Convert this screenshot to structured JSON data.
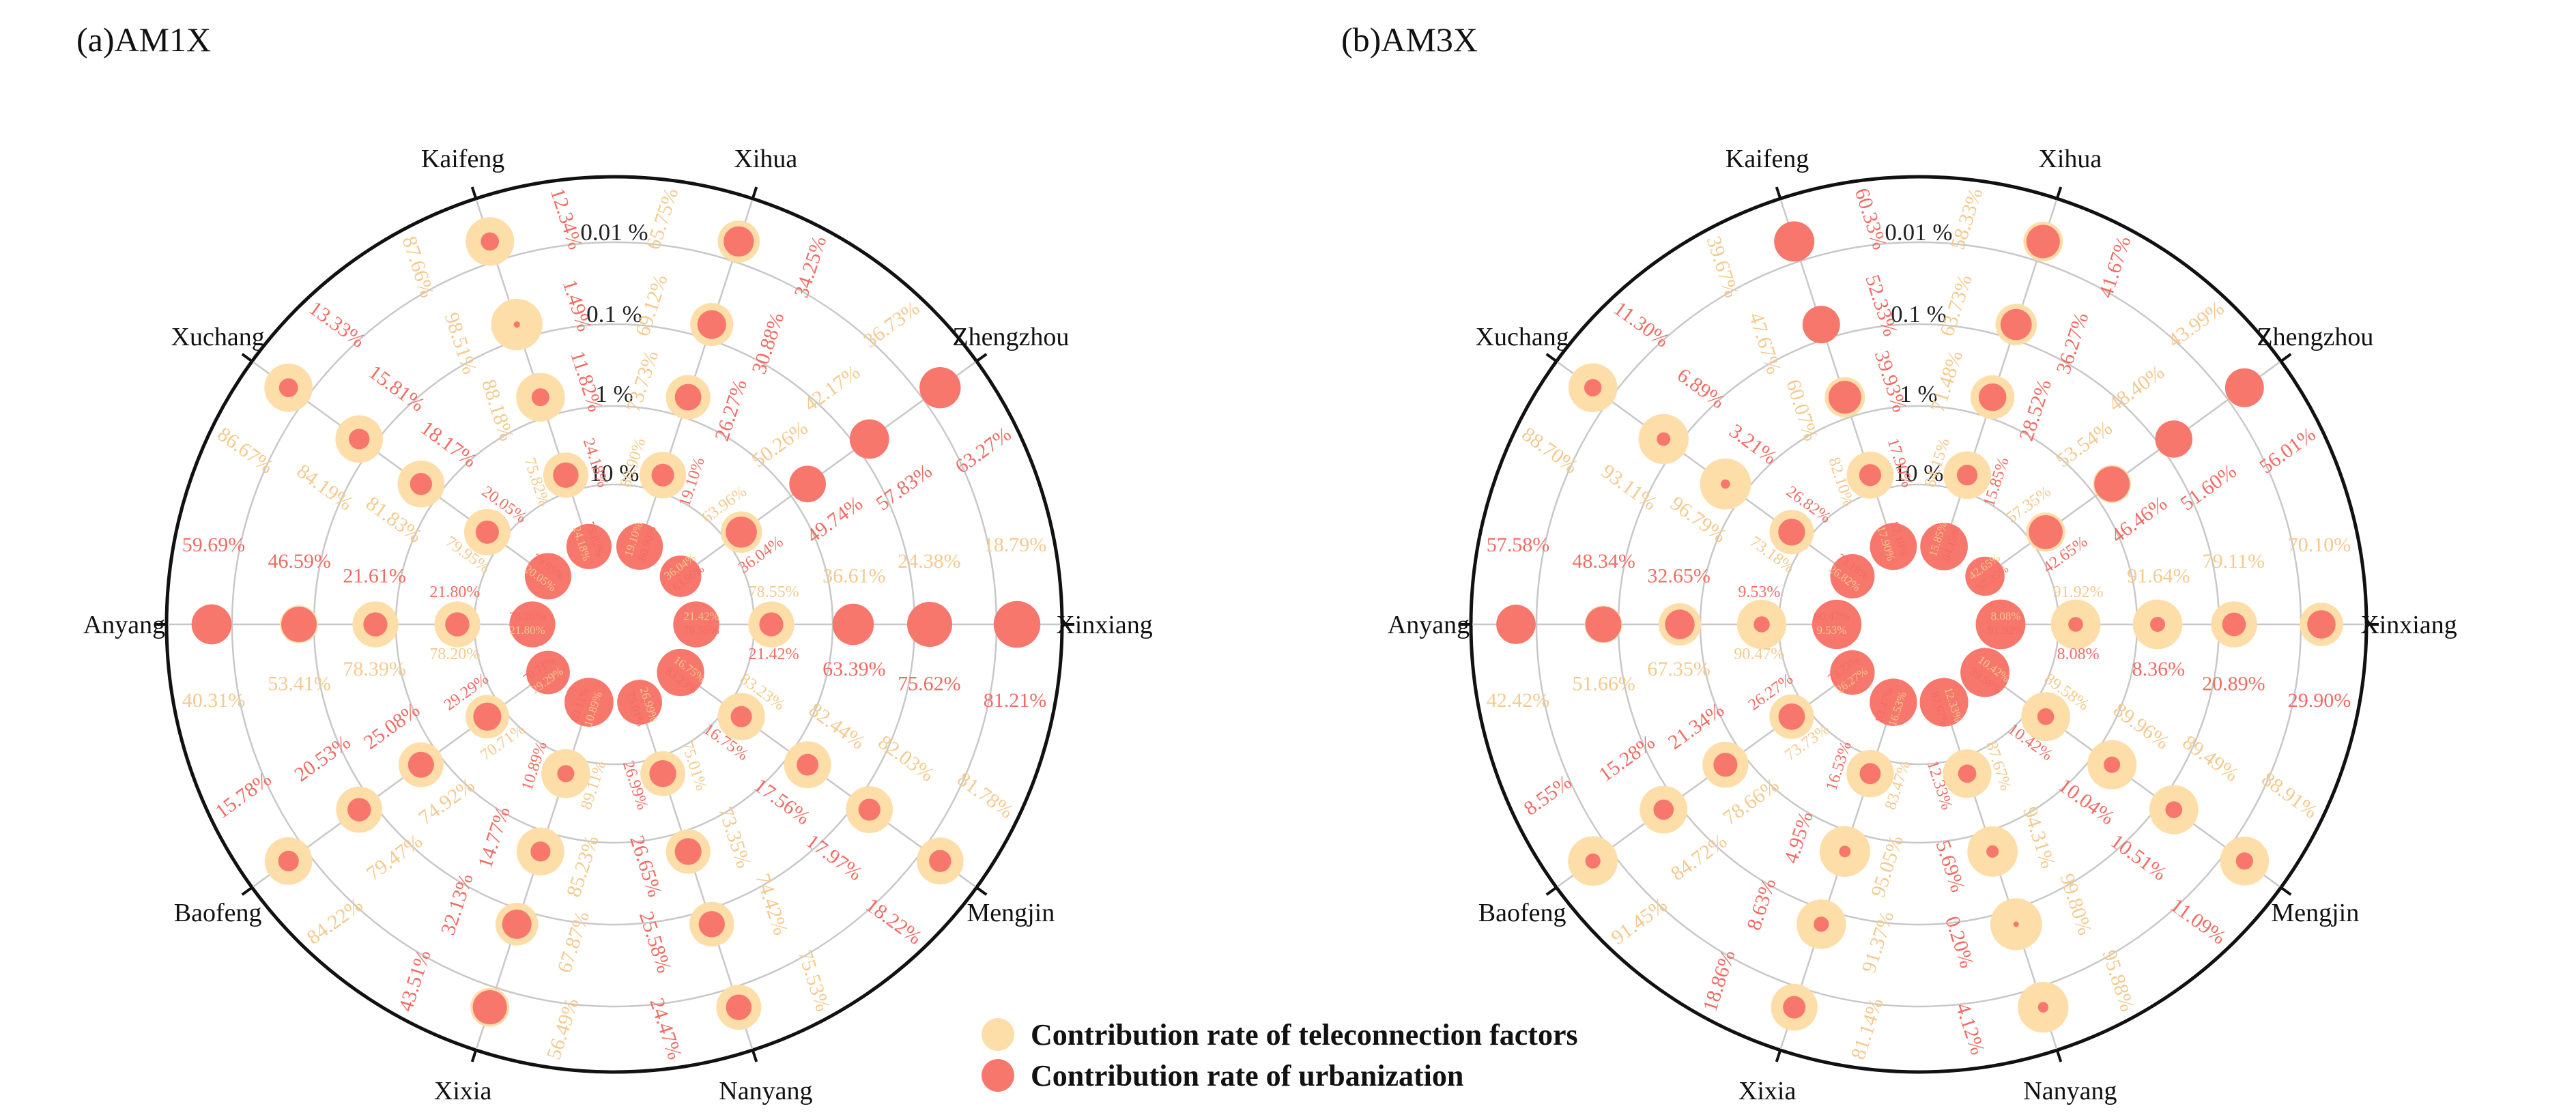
{
  "colors": {
    "teleconnection": "#FDDEA9",
    "urbanization": "#F8776C",
    "teleconnection_text": "#F5C98E",
    "urbanization_text": "#F26B62"
  },
  "legend": {
    "teleconnection": "Contribution rate of teleconnection factors",
    "urbanization": "Contribution rate of urbanization"
  },
  "chart_data": [
    {
      "type": "polar-bubble",
      "title": "(a)AM1X",
      "sites": [
        "Zhengzhou",
        "Xinxiang",
        "Mengjin",
        "Nanyang",
        "Xixia",
        "Baofeng",
        "Anyang",
        "Xuchang",
        "Kaifeng",
        "Xihua"
      ],
      "radial_ticks": [
        "0.01 %",
        "0.1 %",
        "1 %",
        "10 %"
      ],
      "teleconnection_rate": [
        [
          "36.73%",
          "42.17%",
          "50.26%",
          "63.96%",
          "36.04%"
        ],
        [
          "18.79%",
          "24.38%",
          "36.61%",
          "78.55%",
          "21.42%"
        ],
        [
          "81.78%",
          "82.03%",
          "82.44%",
          "83.23%",
          "16.75%"
        ],
        [
          "75.53%",
          "74.42%",
          "73.35%",
          "75.01%",
          "26.99%"
        ],
        [
          "56.49%",
          "67.87%",
          "85.23%",
          "89.11%",
          "10.89%"
        ],
        [
          "84.22%",
          "79.47%",
          "74.92%",
          "70.71%",
          "29.29%"
        ],
        [
          "40.31%",
          "53.41%",
          "78.39%",
          "78.20%",
          "21.80%"
        ],
        [
          "86.67%",
          "84.19%",
          "81.83%",
          "79.95%",
          "20.05%"
        ],
        [
          "87.66%",
          "98.51%",
          "88.18%",
          "75.82%",
          "24.18%"
        ],
        [
          "65.75%",
          "69.12%",
          "73.73%",
          "80.90%",
          "19.10%"
        ]
      ],
      "urbanization_rate": [
        [
          "63.27%",
          "57.83%",
          "49.74%",
          "36.04%",
          "63.96%"
        ],
        [
          "81.21%",
          "75.62%",
          "63.39%",
          "21.42%",
          "78.55%"
        ],
        [
          "18.22%",
          "17.97%",
          "17.56%",
          "16.75%",
          "83.23%"
        ],
        [
          "24.47%",
          "25.58%",
          "26.65%",
          "26.99%",
          "75.01%"
        ],
        [
          "43.51%",
          "32.13%",
          "14.77%",
          "10.89%",
          "89.11%"
        ],
        [
          "15.78%",
          "20.53%",
          "25.08%",
          "29.29%",
          "70.71%"
        ],
        [
          "59.69%",
          "46.59%",
          "21.61%",
          "21.80%",
          "78.20%"
        ],
        [
          "13.33%",
          "15.81%",
          "18.17%",
          "20.05%",
          "79.95%"
        ],
        [
          "12.34%",
          "1.49%",
          "11.82%",
          "24.18%",
          "75.82%"
        ],
        [
          "34.25%",
          "30.88%",
          "26.27%",
          "19.10%",
          "80.90%"
        ]
      ]
    },
    {
      "type": "polar-bubble",
      "title": "(b)AM3X",
      "sites": [
        "Zhengzhou",
        "Xinxiang",
        "Mengjin",
        "Nanyang",
        "Xixia",
        "Baofeng",
        "Anyang",
        "Xuchang",
        "Kaifeng",
        "Xihua"
      ],
      "radial_ticks": [
        "0.01 %",
        "0.1 %",
        "1 %",
        "10 %"
      ],
      "teleconnection_rate": [
        [
          "43.99%",
          "48.40%",
          "53.54%",
          "57.35%",
          "42.65%"
        ],
        [
          "70.10%",
          "79.11%",
          "91.64%",
          "91.92%",
          "8.08%"
        ],
        [
          "88.91%",
          "89.49%",
          "89.96%",
          "89.58%",
          "10.42%"
        ],
        [
          "95.88%",
          "99.80%",
          "94.31%",
          "87.67%",
          "12.33%"
        ],
        [
          "81.14%",
          "91.37%",
          "95.05%",
          "83.47%",
          "16.53%"
        ],
        [
          "91.45%",
          "84.72%",
          "78.66%",
          "73.73%",
          "26.27%"
        ],
        [
          "42.42%",
          "51.66%",
          "67.35%",
          "90.47%",
          "9.53%"
        ],
        [
          "88.70%",
          "93.11%",
          "96.79%",
          "73.18%",
          "26.82%"
        ],
        [
          "39.67%",
          "47.67%",
          "60.07%",
          "82.10%",
          "17.90%"
        ],
        [
          "58.33%",
          "63.73%",
          "71.48%",
          "84.15%",
          "15.85%"
        ]
      ],
      "urbanization_rate": [
        [
          "56.01%",
          "51.60%",
          "46.46%",
          "42.65%",
          "57.35%"
        ],
        [
          "29.90%",
          "20.89%",
          "8.36%",
          "8.08%",
          "91.92%"
        ],
        [
          "11.09%",
          "10.51%",
          "10.04%",
          "10.42%",
          "89.58%"
        ],
        [
          "4.12%",
          "0.20%",
          "5.69%",
          "12.33%",
          "87.67%"
        ],
        [
          "18.86%",
          "8.63%",
          "4.95%",
          "16.53%",
          "83.47%"
        ],
        [
          "8.55%",
          "15.28%",
          "21.34%",
          "26.27%",
          "73.73%"
        ],
        [
          "57.58%",
          "48.34%",
          "32.65%",
          "9.53%",
          "90.47%"
        ],
        [
          "11.30%",
          "6.89%",
          "3.21%",
          "26.82%",
          "73.18%"
        ],
        [
          "60.33%",
          "52.33%",
          "39.93%",
          "17.90%",
          "82.10%"
        ],
        [
          "41.67%",
          "36.27%",
          "28.52%",
          "15.85%",
          "84.15%"
        ]
      ]
    }
  ]
}
